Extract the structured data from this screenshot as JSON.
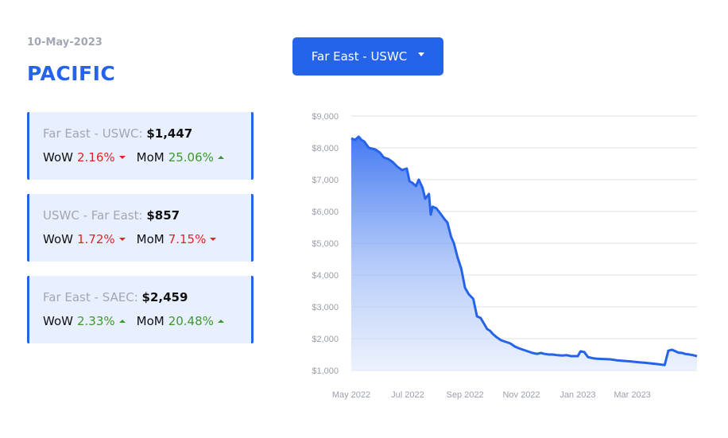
{
  "header": {
    "date": "10-May-2023",
    "region": "PACIFIC"
  },
  "route_select": {
    "label": "Far East - USWC"
  },
  "cards": [
    {
      "route": "Far East - USWC:",
      "price": "$1,447",
      "wow_label": "WoW",
      "wow": "2.16%",
      "wow_dir": "down",
      "mom_label": "MoM",
      "mom": "25.06%",
      "mom_dir": "up"
    },
    {
      "route": "USWC - Far East:",
      "price": "$857",
      "wow_label": "WoW",
      "wow": "1.72%",
      "wow_dir": "down",
      "mom_label": "MoM",
      "mom": "7.15%",
      "mom_dir": "down"
    },
    {
      "route": "Far East - SAEC:",
      "price": "$2,459",
      "wow_label": "WoW",
      "wow": "2.33%",
      "wow_dir": "up",
      "mom_label": "MoM",
      "mom": "20.48%",
      "mom_dir": "up"
    }
  ],
  "colors": {
    "accent": "#2563eb",
    "card_bg": "#e8efff",
    "down": "#e02424",
    "up": "#3c9a2a"
  },
  "chart_data": {
    "type": "area",
    "title": "",
    "xlabel": "",
    "ylabel": "",
    "ylim": [
      1000,
      9000
    ],
    "xlim": [
      "2022-05-01",
      "2023-05-10"
    ],
    "grid": true,
    "y_ticks": [
      "$9,000",
      "$8,000",
      "$7,000",
      "$6,000",
      "$5,000",
      "$4,000",
      "$3,000",
      "$2,000",
      "$1,000"
    ],
    "x_ticks": [
      "May 2022",
      "Jul 2022",
      "Sep 2022",
      "Nov 2022",
      "Jan 2023",
      "Mar 2023"
    ],
    "series": [
      {
        "x": [
          "2022-05-01",
          "2022-05-05",
          "2022-05-09",
          "2022-05-12",
          "2022-05-15",
          "2022-05-20",
          "2022-05-27",
          "2022-06-01",
          "2022-06-05",
          "2022-06-10",
          "2022-06-15",
          "2022-06-20",
          "2022-06-25",
          "2022-06-30",
          "2022-07-03",
          "2022-07-06",
          "2022-07-10",
          "2022-07-13",
          "2022-07-17",
          "2022-07-20",
          "2022-07-24",
          "2022-07-26",
          "2022-07-28",
          "2022-08-01",
          "2022-08-05",
          "2022-08-10",
          "2022-08-13",
          "2022-08-17",
          "2022-08-20",
          "2022-08-24",
          "2022-08-28",
          "2022-09-01",
          "2022-09-05",
          "2022-09-10",
          "2022-09-14",
          "2022-09-18",
          "2022-09-21",
          "2022-09-25",
          "2022-09-28",
          "2022-10-01",
          "2022-10-05",
          "2022-10-10",
          "2022-10-15",
          "2022-10-20",
          "2022-10-25",
          "2022-10-29",
          "2022-11-03",
          "2022-11-08",
          "2022-11-13",
          "2022-11-18",
          "2022-11-22",
          "2022-11-26",
          "2022-12-01",
          "2022-12-05",
          "2022-12-10",
          "2022-12-15",
          "2022-12-20",
          "2022-12-25",
          "2023-01-01",
          "2023-01-04",
          "2023-01-08",
          "2023-01-12",
          "2023-01-15",
          "2023-01-18",
          "2023-01-22",
          "2023-01-28",
          "2023-02-05",
          "2023-02-12",
          "2023-02-20",
          "2023-02-28",
          "2023-03-07",
          "2023-03-15",
          "2023-03-22",
          "2023-03-28",
          "2023-04-02",
          "2023-04-05",
          "2023-04-09",
          "2023-04-13",
          "2023-04-17",
          "2023-04-20",
          "2023-04-24",
          "2023-04-27",
          "2023-05-02",
          "2023-05-06",
          "2023-05-10"
        ],
        "y": [
          8300,
          8250,
          8350,
          8250,
          8200,
          8000,
          7950,
          7850,
          7700,
          7650,
          7550,
          7400,
          7300,
          7350,
          6950,
          6900,
          6800,
          7000,
          6750,
          6400,
          6550,
          5900,
          6150,
          6100,
          5950,
          5750,
          5650,
          5200,
          5000,
          4550,
          4200,
          3600,
          3400,
          3250,
          2700,
          2650,
          2500,
          2300,
          2250,
          2150,
          2050,
          1950,
          1900,
          1850,
          1750,
          1700,
          1650,
          1600,
          1550,
          1520,
          1550,
          1520,
          1500,
          1500,
          1480,
          1470,
          1480,
          1450,
          1450,
          1600,
          1580,
          1420,
          1400,
          1380,
          1370,
          1360,
          1350,
          1320,
          1300,
          1280,
          1260,
          1240,
          1220,
          1200,
          1180,
          1170,
          1620,
          1650,
          1600,
          1560,
          1550,
          1520,
          1500,
          1480,
          1447
        ]
      }
    ]
  }
}
